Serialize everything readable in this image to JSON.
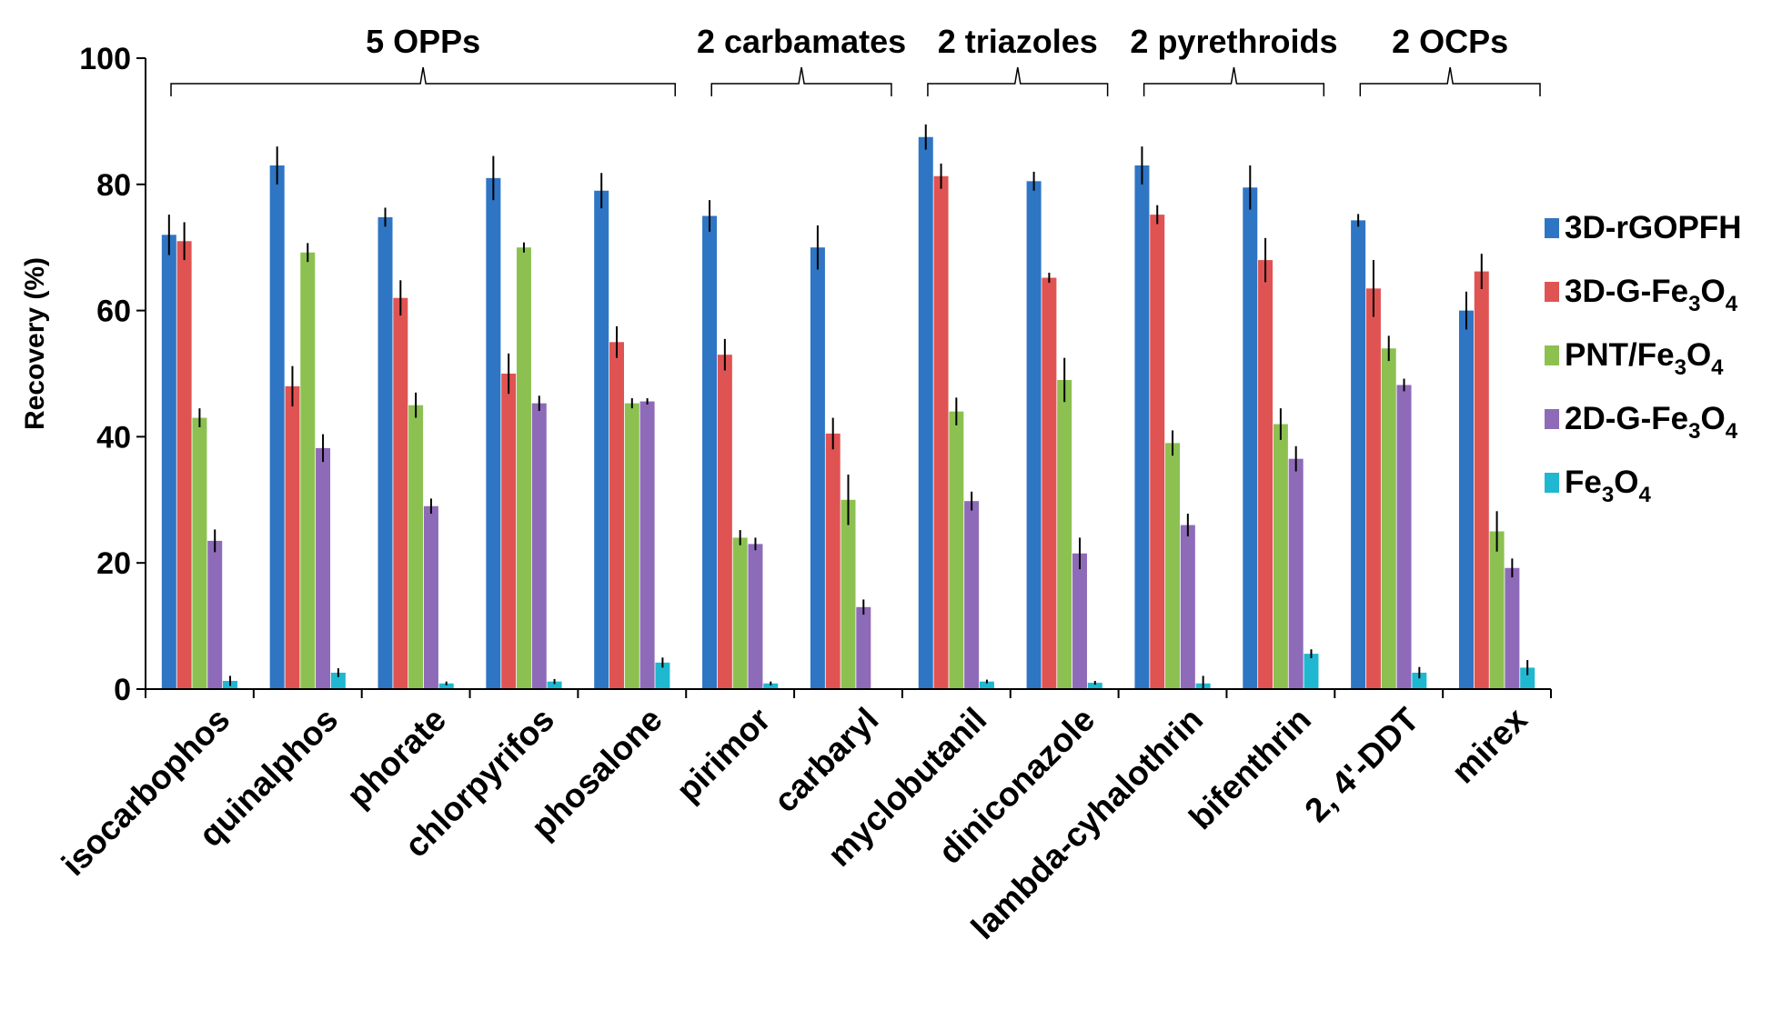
{
  "chart_data": {
    "type": "bar",
    "title": "",
    "xlabel": "",
    "ylabel": "Recovery (%)",
    "ylim": [
      0,
      100
    ],
    "yticks": [
      0,
      20,
      40,
      60,
      80,
      100
    ],
    "categories": [
      "isocarbophos",
      "quinalphos",
      "phorate",
      "chlorpyrifos",
      "phosalone",
      "pirimor",
      "carbaryl",
      "myclobutanil",
      "diniconazole",
      "lambda-cyhalothrin",
      "bifenthrin",
      "2, 4'-DDT",
      "mirex"
    ],
    "series": [
      {
        "name": "3D-rGOPFH",
        "base": "3D-rGOPFH",
        "sub": [],
        "color": "#2e75c4",
        "values": [
          72,
          83,
          74.8,
          81,
          79,
          75,
          70,
          87.5,
          80.5,
          83,
          79.5,
          74.3,
          60
        ],
        "errors": [
          3.2,
          3,
          1.5,
          3.5,
          2.8,
          2.5,
          3.5,
          2,
          1.5,
          3,
          3.5,
          1,
          3
        ]
      },
      {
        "name": "3D-G-Fe3O4",
        "base": "3D-G-Fe",
        "sub": [
          "3",
          "O",
          "4"
        ],
        "color": "#e05353",
        "values": [
          71,
          48,
          62,
          50,
          55,
          53,
          40.5,
          81.3,
          65.2,
          75.2,
          68,
          63.5,
          66.2
        ],
        "errors": [
          3,
          3.2,
          2.8,
          3.2,
          2.5,
          2.5,
          2.5,
          2,
          0.8,
          1.5,
          3.5,
          4.5,
          2.8
        ]
      },
      {
        "name": "PNT/Fe3O4",
        "base": "PNT/Fe",
        "sub": [
          "3",
          "O",
          "4"
        ],
        "color": "#8cc152",
        "values": [
          43,
          69.2,
          45,
          70,
          45.3,
          24,
          30,
          44,
          49,
          39,
          42,
          54,
          25
        ],
        "errors": [
          1.5,
          1.5,
          2,
          0.8,
          0.8,
          1.2,
          4,
          2.2,
          3.5,
          2,
          2.5,
          2,
          3.2
        ]
      },
      {
        "name": "2D-G-Fe3O4",
        "base": "2D-G-Fe",
        "sub": [
          "3",
          "O",
          "4"
        ],
        "color": "#8e6bb8",
        "values": [
          23.5,
          38.2,
          29,
          45.3,
          45.6,
          23,
          13,
          29.8,
          21.5,
          26,
          36.5,
          48.2,
          19.2
        ],
        "errors": [
          1.8,
          2.2,
          1.2,
          1.2,
          0.5,
          1,
          1.2,
          1.5,
          2.5,
          1.8,
          2,
          1,
          1.5
        ]
      },
      {
        "name": "Fe3O4",
        "base": "Fe",
        "sub": [
          "3",
          "O",
          "4"
        ],
        "color": "#1fb8d0",
        "values": [
          1.3,
          2.6,
          0.9,
          1.2,
          4.2,
          0.9,
          0,
          1.2,
          1,
          0.9,
          5.6,
          2.6,
          3.4
        ],
        "errors": [
          0.8,
          0.7,
          0.3,
          0.4,
          0.8,
          0.3,
          0,
          0.3,
          0.3,
          1.2,
          0.7,
          0.9,
          1.2
        ]
      }
    ],
    "groups": [
      {
        "label": "5 OPPs",
        "start": 0,
        "end": 4
      },
      {
        "label": "2 carbamates",
        "start": 5,
        "end": 6
      },
      {
        "label": "2 triazoles",
        "start": 7,
        "end": 8
      },
      {
        "label": "2 pyrethroids",
        "start": 9,
        "end": 10
      },
      {
        "label": "2 OCPs",
        "start": 11,
        "end": 12
      }
    ],
    "legend_position": "right",
    "grid": false
  }
}
